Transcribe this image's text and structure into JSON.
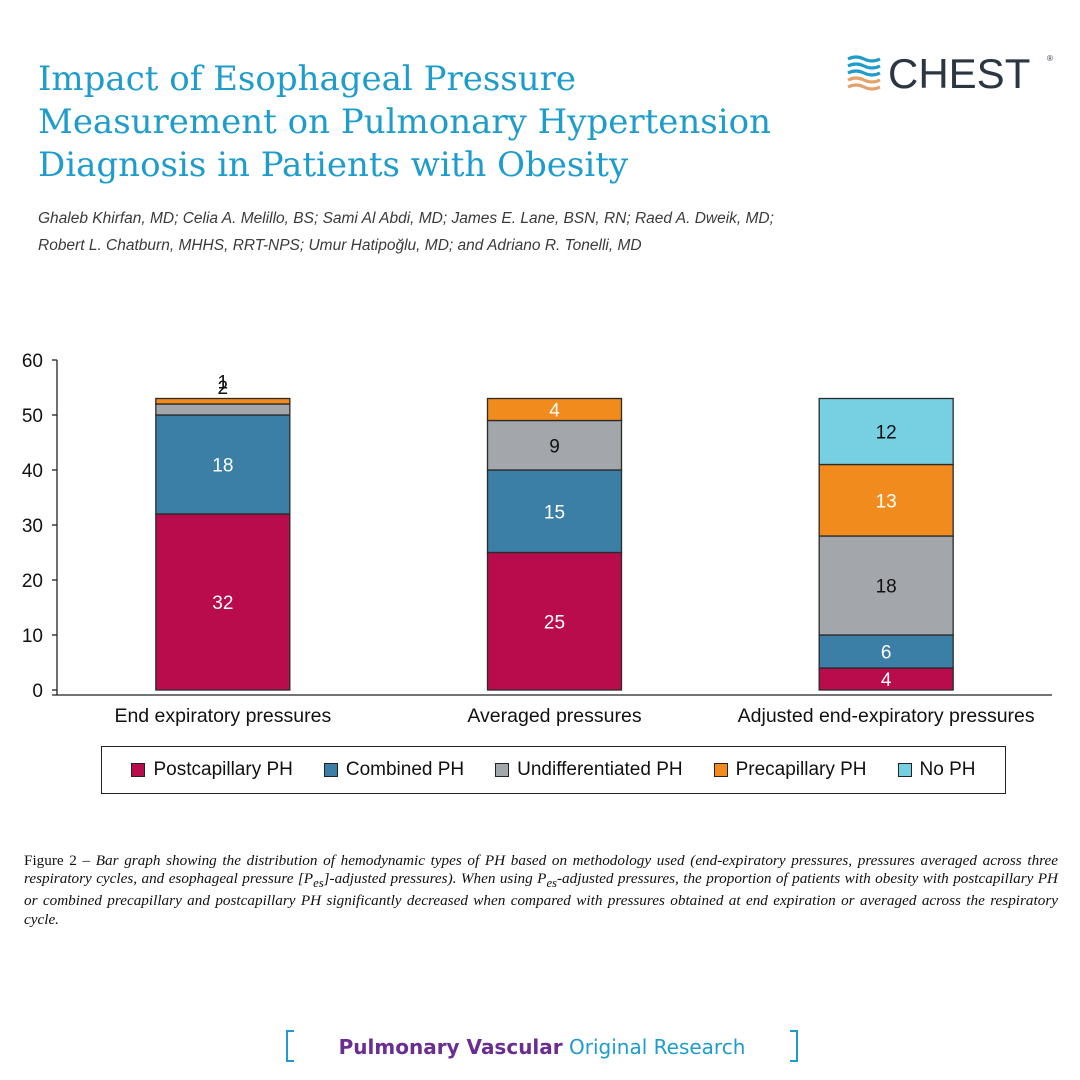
{
  "header": {
    "title_lines": [
      "Impact of Esophageal Pressure",
      "Measurement on Pulmonary Hypertension",
      "Diagnosis in Patients with Obesity"
    ],
    "authors_lines": [
      "Ghaleb Khirfan, MD; Celia A. Melillo, BS; Sami Al Abdi, MD; James E. Lane, BSN, RN; Raed A. Dweik, MD;",
      "Robert L. Chatburn, MHHS, RRT-NPS; Umur Hatipoğlu, MD; and Adriano R. Tonelli, MD"
    ],
    "logo_text": "CHEST",
    "logo_mark": "®"
  },
  "colors": {
    "title": "#1e9ccc",
    "postcapillary": "#b80c4c",
    "combined": "#3b7fa6",
    "undifferentiated": "#a3a6aa",
    "precapillary": "#f28b1e",
    "no_ph": "#77d0e2"
  },
  "chart_data": {
    "type": "bar",
    "stacked": true,
    "categories": [
      "End expiratory pressures",
      "Averaged pressures",
      "Adjusted end-expiratory pressures"
    ],
    "series": [
      {
        "name": "Postcapillary PH",
        "color": "#b80c4c",
        "values": [
          32,
          25,
          4
        ],
        "label_color": "#ffffff"
      },
      {
        "name": "Combined PH",
        "color": "#3b7fa6",
        "values": [
          18,
          15,
          6
        ],
        "label_color": "#ffffff"
      },
      {
        "name": "Undifferentiated PH",
        "color": "#a3a6aa",
        "values": [
          2,
          9,
          18
        ],
        "label_color": "#111111"
      },
      {
        "name": "Precapillary PH",
        "color": "#f28b1e",
        "values": [
          1,
          4,
          13
        ],
        "label_color": "#ffffff"
      },
      {
        "name": "No PH",
        "color": "#77d0e2",
        "values": [
          0,
          0,
          12
        ],
        "label_color": "#111111"
      }
    ],
    "ylim": [
      0,
      60
    ],
    "yticks": [
      0,
      10,
      20,
      30,
      40,
      50,
      60
    ],
    "grid": false,
    "legend_position": "bottom"
  },
  "caption": {
    "label": "Figure 2 – ",
    "body": "Bar graph showing the distribution of hemodynamic types of PH based on methodology used (end-expiratory pressures, pressures averaged across three respiratory cycles, and esophageal pressure [P",
    "sub1": "es",
    "body2": "]-adjusted pressures). When using P",
    "sub2": "es",
    "body3": "-adjusted pressures, the proportion of patients with obesity with postcapillary PH or combined precapillary and postcapillary PH significantly decreased when compared with pressures obtained at end expiration or averaged across the respiratory cycle."
  },
  "footer": {
    "category": "Pulmonary Vascular",
    "type": "Original Research"
  }
}
